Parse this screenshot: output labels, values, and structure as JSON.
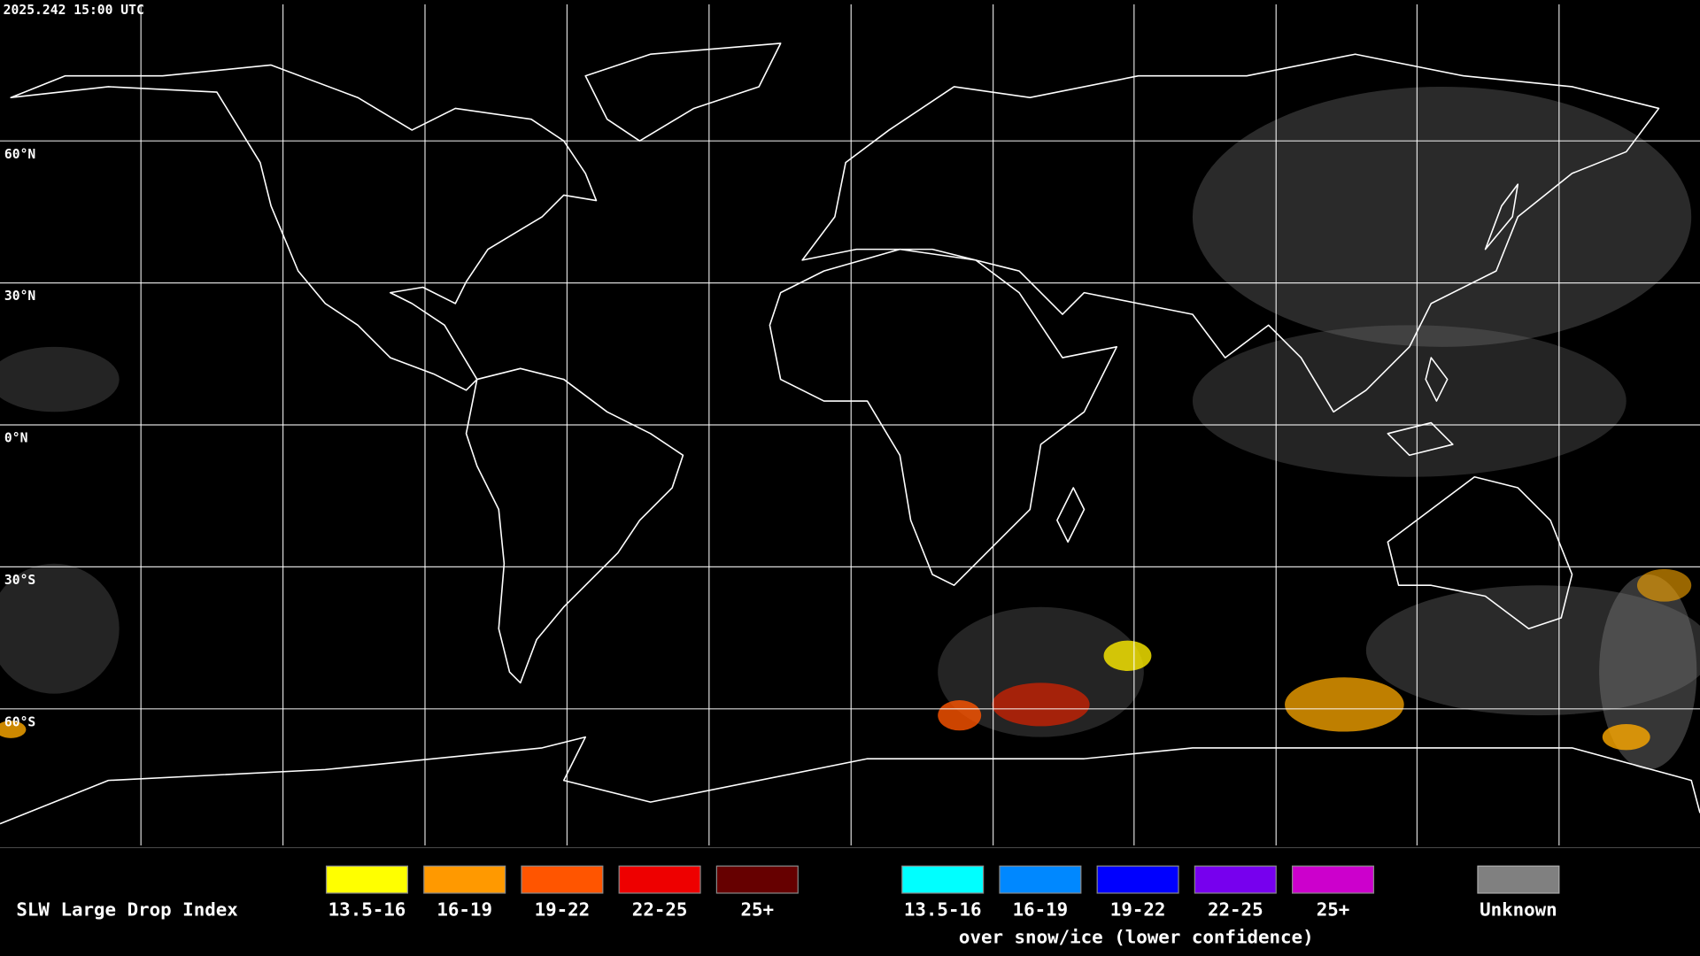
{
  "header": {
    "timestamp": "2025.242 15:00 UTC"
  },
  "grid": {
    "latitude_labels": [
      "60°N",
      "30°N",
      "0°N",
      "30°S",
      "60°S"
    ]
  },
  "legend": {
    "title": "SLW Large Drop Index",
    "items": [
      {
        "label": "13.5-16",
        "color": "#ffff00"
      },
      {
        "label": "16-19",
        "color": "#ff9900"
      },
      {
        "label": "19-22",
        "color": "#ff5500"
      },
      {
        "label": "22-25",
        "color": "#ee0000"
      },
      {
        "label": "25+",
        "color": "#660000"
      }
    ],
    "snow_items": [
      {
        "label": "13.5-16",
        "color": "#00ffff"
      },
      {
        "label": "16-19",
        "color": "#0088ff"
      },
      {
        "label": "19-22",
        "color": "#0000ff"
      },
      {
        "label": "22-25",
        "color": "#7700ee"
      },
      {
        "label": "25+",
        "color": "#cc00cc"
      }
    ],
    "snow_note": "over snow/ice (lower confidence)",
    "unknown": {
      "label": "Unknown",
      "color": "#808080"
    }
  }
}
